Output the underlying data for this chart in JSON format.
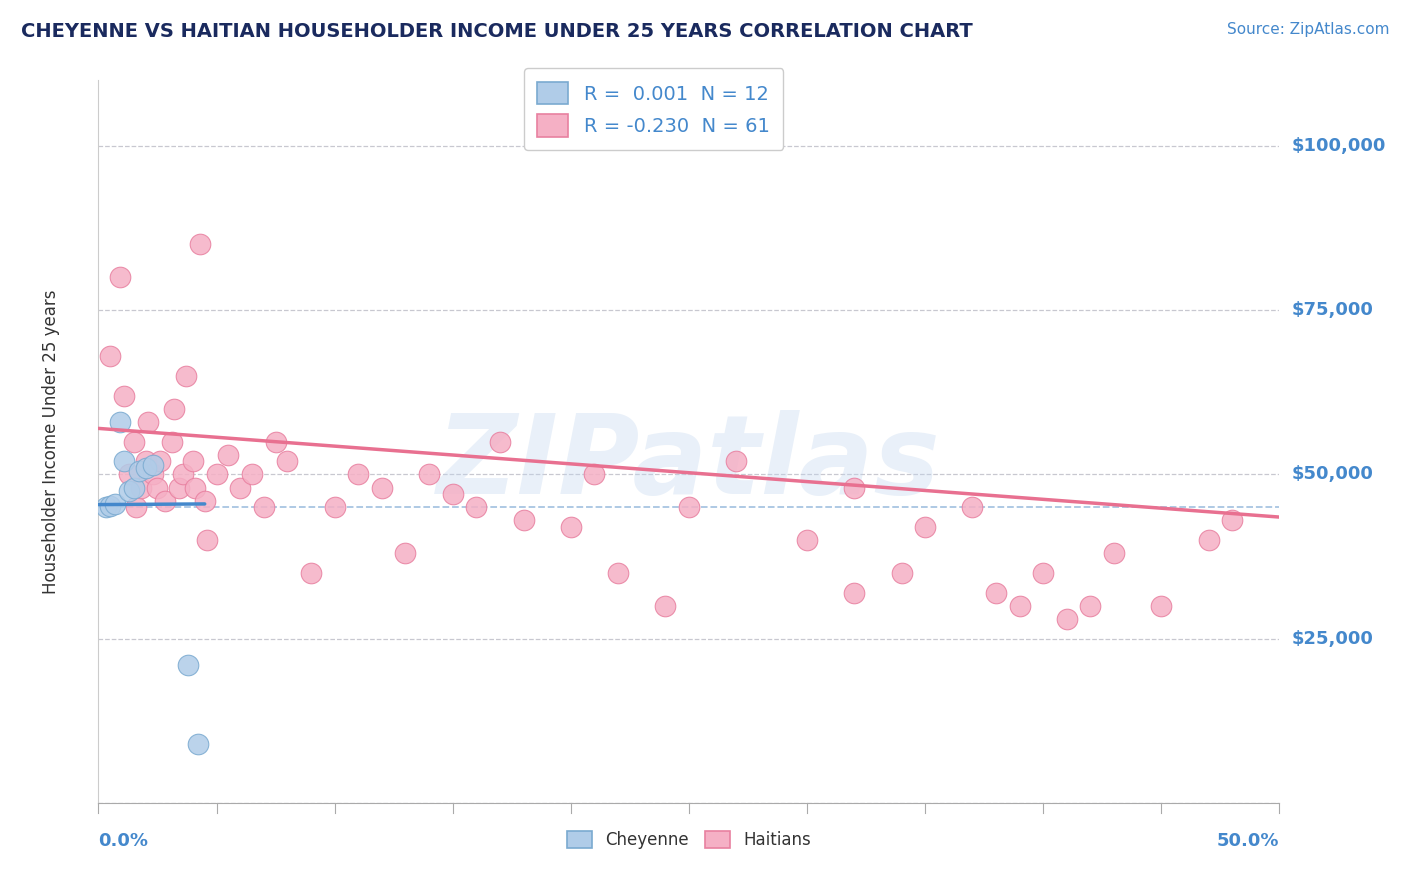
{
  "title": "CHEYENNE VS HAITIAN HOUSEHOLDER INCOME UNDER 25 YEARS CORRELATION CHART",
  "source": "Source: ZipAtlas.com",
  "ylabel": "Householder Income Under 25 years",
  "xlim": [
    0.0,
    50.0
  ],
  "ylim": [
    0,
    110000
  ],
  "yticks": [
    0,
    25000,
    50000,
    75000,
    100000
  ],
  "ytick_labels": [
    "",
    "$25,000",
    "$50,000",
    "$75,000",
    "$100,000"
  ],
  "legend1_r": "R =  0.001",
  "legend1_n": "N = 12",
  "legend2_r": "R = -0.230",
  "legend2_n": "N = 61",
  "watermark": "ZIPatlas",
  "bg_color": "#ffffff",
  "grid_color": "#c8c8d0",
  "cheyenne_face": "#b0cce8",
  "cheyenne_edge": "#7aaad0",
  "haitian_face": "#f5b0c5",
  "haitian_edge": "#e880a0",
  "cheyenne_line_color": "#4488cc",
  "haitian_line_color": "#e87090",
  "ref_dashed_color": "#99bbdd",
  "ref_dashed_y": 45000,
  "title_color": "#1a2a5e",
  "source_color": "#4488cc",
  "ylabel_color": "#333333",
  "axis_label_color": "#4488cc",
  "legend_text_color": "#4488cc",
  "cheyenne_x": [
    0.3,
    0.5,
    0.7,
    0.9,
    1.1,
    1.3,
    1.5,
    1.7,
    2.0,
    2.3,
    3.8,
    4.2
  ],
  "cheyenne_y": [
    45000,
    45200,
    45500,
    58000,
    52000,
    47500,
    48000,
    50500,
    51000,
    51500,
    21000,
    9000
  ],
  "cheyenne_trend_x": [
    0.0,
    4.5
  ],
  "cheyenne_trend_y": [
    45400,
    45500
  ],
  "haitian_x": [
    0.5,
    0.9,
    1.1,
    1.3,
    1.5,
    1.6,
    1.8,
    2.0,
    2.1,
    2.3,
    2.5,
    2.6,
    2.8,
    3.1,
    3.2,
    3.4,
    3.6,
    3.7,
    4.0,
    4.1,
    4.3,
    4.5,
    4.6,
    5.0,
    5.5,
    6.0,
    6.5,
    7.0,
    7.5,
    8.0,
    9.0,
    10.0,
    11.0,
    12.0,
    13.0,
    14.0,
    15.0,
    16.0,
    17.0,
    18.0,
    20.0,
    21.0,
    22.0,
    24.0,
    25.0,
    27.0,
    30.0,
    32.0,
    35.0,
    37.0,
    39.0,
    40.0,
    41.0,
    43.0,
    45.0,
    47.0,
    48.0,
    32.0,
    34.0,
    38.0,
    42.0
  ],
  "haitian_y": [
    68000,
    80000,
    62000,
    50000,
    55000,
    45000,
    48000,
    52000,
    58000,
    50000,
    48000,
    52000,
    46000,
    55000,
    60000,
    48000,
    50000,
    65000,
    52000,
    48000,
    85000,
    46000,
    40000,
    50000,
    53000,
    48000,
    50000,
    45000,
    55000,
    52000,
    35000,
    45000,
    50000,
    48000,
    38000,
    50000,
    47000,
    45000,
    55000,
    43000,
    42000,
    50000,
    35000,
    30000,
    45000,
    52000,
    40000,
    32000,
    42000,
    45000,
    30000,
    35000,
    28000,
    38000,
    30000,
    40000,
    43000,
    48000,
    35000,
    32000,
    30000
  ],
  "haitian_trend_x": [
    0.0,
    50.0
  ],
  "haitian_trend_y": [
    57000,
    43500
  ]
}
